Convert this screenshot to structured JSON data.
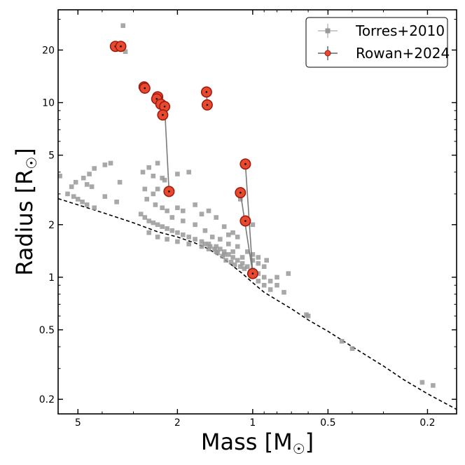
{
  "chart_data": {
    "type": "scatter",
    "xscale": "log",
    "yscale": "log",
    "x_reversed": true,
    "xlim": [
      6.0,
      0.153
    ],
    "ylim": [
      0.165,
      34
    ],
    "xlabel": "Mass [M",
    "xlabel_sub": "☉",
    "xlabel_end": "]",
    "ylabel": "Radius [R",
    "ylabel_sub": "☉",
    "ylabel_end": "]",
    "xticks": [
      5,
      2,
      1,
      0.5,
      0.2
    ],
    "xtick_labels": [
      "5",
      "2",
      "1",
      "0.5",
      "0.2"
    ],
    "yticks": [
      0.2,
      0.5,
      1,
      2,
      5,
      10,
      20
    ],
    "ytick_labels": [
      "0.2",
      "0.5",
      "1",
      "2",
      "5",
      "10",
      "20"
    ],
    "legend": {
      "position": "top-right",
      "entries": [
        {
          "label": "Torres+2010",
          "color": "#999999",
          "marker": "square"
        },
        {
          "label": "Rowan+2024",
          "color": "#e03020",
          "marker": "circle"
        }
      ]
    },
    "series": [
      {
        "name": "Torres+2010",
        "color": "#999999",
        "points": [
          [
            3.3,
            27.6
          ],
          [
            3.23,
            19.6
          ],
          [
            3.4,
            21.0
          ],
          [
            3.7,
            4.5
          ],
          [
            3.9,
            4.4
          ],
          [
            4.3,
            4.2
          ],
          [
            4.5,
            3.9
          ],
          [
            5.9,
            3.8
          ],
          [
            4.75,
            3.7
          ],
          [
            5.1,
            3.5
          ],
          [
            3.4,
            3.5
          ],
          [
            4.6,
            3.4
          ],
          [
            4.4,
            3.3
          ],
          [
            5.3,
            3.3
          ],
          [
            5.5,
            3.0
          ],
          [
            5.2,
            2.9
          ],
          [
            5.0,
            2.8
          ],
          [
            4.8,
            2.7
          ],
          [
            4.6,
            2.6
          ],
          [
            3.9,
            2.9
          ],
          [
            3.5,
            2.7
          ],
          [
            4.3,
            2.5
          ],
          [
            2.75,
            4.0
          ],
          [
            2.6,
            4.25
          ],
          [
            2.4,
            4.5
          ],
          [
            2.5,
            3.8
          ],
          [
            2.3,
            3.7
          ],
          [
            2.25,
            3.6
          ],
          [
            2.0,
            3.9
          ],
          [
            1.8,
            4.0
          ],
          [
            2.7,
            3.2
          ],
          [
            2.4,
            3.2
          ],
          [
            2.5,
            3.0
          ],
          [
            2.65,
            2.8
          ],
          [
            2.45,
            2.6
          ],
          [
            2.3,
            2.5
          ],
          [
            2.2,
            2.4
          ],
          [
            2.0,
            2.5
          ],
          [
            1.9,
            2.4
          ],
          [
            1.7,
            2.6
          ],
          [
            1.6,
            2.3
          ],
          [
            1.5,
            2.4
          ],
          [
            1.4,
            2.2
          ],
          [
            2.8,
            2.3
          ],
          [
            2.7,
            2.2
          ],
          [
            2.6,
            2.1
          ],
          [
            2.5,
            2.05
          ],
          [
            2.4,
            2.0
          ],
          [
            2.3,
            1.95
          ],
          [
            2.2,
            1.9
          ],
          [
            2.1,
            1.85
          ],
          [
            2.0,
            1.8
          ],
          [
            1.9,
            1.75
          ],
          [
            1.8,
            1.7
          ],
          [
            1.7,
            1.65
          ],
          [
            1.6,
            1.6
          ],
          [
            1.5,
            1.55
          ],
          [
            1.4,
            1.5
          ],
          [
            1.35,
            1.45
          ],
          [
            1.3,
            1.4
          ],
          [
            1.25,
            1.35
          ],
          [
            1.2,
            1.3
          ],
          [
            1.15,
            1.25
          ],
          [
            1.1,
            1.2
          ],
          [
            1.05,
            1.15
          ],
          [
            1.0,
            1.1
          ],
          [
            0.95,
            1.05
          ],
          [
            0.9,
            1.0
          ],
          [
            0.85,
            0.95
          ],
          [
            0.8,
            0.9
          ],
          [
            2.6,
            1.8
          ],
          [
            2.4,
            1.7
          ],
          [
            2.2,
            1.65
          ],
          [
            2.0,
            1.6
          ],
          [
            1.8,
            1.55
          ],
          [
            1.6,
            1.5
          ],
          [
            1.5,
            1.45
          ],
          [
            1.4,
            1.4
          ],
          [
            1.3,
            1.35
          ],
          [
            1.2,
            1.4
          ],
          [
            1.1,
            1.3
          ],
          [
            1.0,
            1.25
          ],
          [
            0.95,
            1.2
          ],
          [
            0.9,
            1.15
          ],
          [
            1.25,
            1.55
          ],
          [
            1.15,
            1.5
          ],
          [
            1.05,
            1.4
          ],
          [
            1.0,
            1.35
          ],
          [
            0.95,
            1.3
          ],
          [
            0.88,
            1.25
          ],
          [
            1.45,
            1.7
          ],
          [
            1.35,
            1.65
          ],
          [
            1.25,
            1.75
          ],
          [
            1.15,
            1.7
          ],
          [
            1.55,
            1.85
          ],
          [
            1.3,
            1.95
          ],
          [
            1.2,
            1.8
          ],
          [
            1.7,
            2.0
          ],
          [
            1.9,
            2.1
          ],
          [
            2.1,
            2.2
          ],
          [
            1.0,
            2.0
          ],
          [
            1.12,
            2.8
          ],
          [
            0.8,
            1.0
          ],
          [
            0.75,
            0.82
          ],
          [
            0.72,
            1.05
          ],
          [
            0.9,
            0.9
          ],
          [
            0.85,
            0.85
          ],
          [
            0.95,
            0.95
          ],
          [
            0.61,
            0.61
          ],
          [
            0.6,
            0.6
          ],
          [
            0.44,
            0.43
          ],
          [
            0.4,
            0.39
          ],
          [
            0.21,
            0.25
          ],
          [
            0.19,
            0.24
          ],
          [
            1.55,
            1.55
          ],
          [
            1.48,
            1.5
          ],
          [
            1.42,
            1.45
          ],
          [
            1.38,
            1.38
          ],
          [
            1.32,
            1.32
          ],
          [
            1.28,
            1.25
          ],
          [
            1.22,
            1.22
          ],
          [
            1.18,
            1.18
          ],
          [
            1.12,
            1.15
          ],
          [
            1.08,
            1.12
          ],
          [
            1.02,
            1.08
          ]
        ]
      },
      {
        "name": "Rowan+2024",
        "color": "#e03020",
        "points": [
          [
            3.54,
            21.0
          ],
          [
            3.37,
            21.0
          ],
          [
            2.72,
            12.3
          ],
          [
            2.7,
            12.1
          ],
          [
            2.4,
            10.8
          ],
          [
            2.42,
            10.5
          ],
          [
            2.33,
            9.8
          ],
          [
            2.25,
            9.5
          ],
          [
            2.29,
            8.5
          ],
          [
            2.16,
            3.1
          ],
          [
            1.53,
            11.5
          ],
          [
            1.52,
            9.7
          ],
          [
            1.12,
            3.05
          ],
          [
            1.07,
            4.45
          ],
          [
            1.07,
            2.1
          ],
          [
            1.0,
            1.05
          ]
        ],
        "connections": [
          [
            7,
            9
          ],
          [
            12,
            15
          ],
          [
            13,
            15
          ],
          [
            10,
            11
          ]
        ]
      }
    ],
    "reference_curve": {
      "style": "dashed",
      "color": "#000000",
      "points": [
        [
          6.0,
          2.82
        ],
        [
          4.0,
          2.35
        ],
        [
          3.0,
          2.05
        ],
        [
          2.4,
          1.82
        ],
        [
          2.0,
          1.7
        ],
        [
          1.7,
          1.57
        ],
        [
          1.5,
          1.45
        ],
        [
          1.3,
          1.27
        ],
        [
          1.1,
          1.05
        ],
        [
          1.0,
          0.93
        ],
        [
          0.9,
          0.82
        ],
        [
          0.8,
          0.74
        ],
        [
          0.7,
          0.66
        ],
        [
          0.6,
          0.57
        ],
        [
          0.5,
          0.49
        ],
        [
          0.4,
          0.4
        ],
        [
          0.3,
          0.31
        ],
        [
          0.25,
          0.26
        ],
        [
          0.2,
          0.215
        ],
        [
          0.153,
          0.175
        ]
      ]
    }
  }
}
